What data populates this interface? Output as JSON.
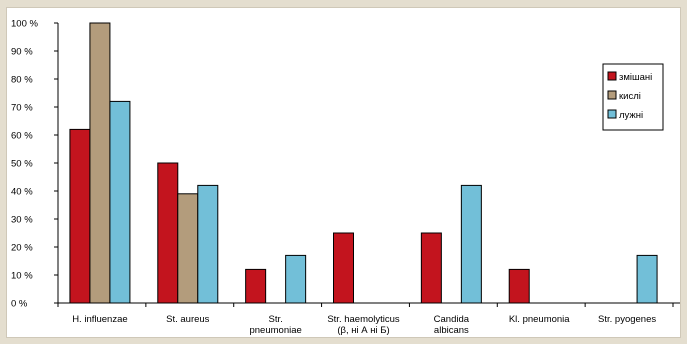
{
  "chart_data": {
    "type": "bar",
    "categories": [
      [
        "H. influenzae"
      ],
      [
        "St. aureus"
      ],
      [
        "Str.",
        "pneumoniae"
      ],
      [
        "Str. haemolyticus",
        "(β, ні А ні Б)"
      ],
      [
        "Candida",
        "albicans"
      ],
      [
        "Kl. pneumonia"
      ],
      [
        "Str. pyogenes"
      ]
    ],
    "series": [
      {
        "name": "змішані",
        "color": "#c3141e",
        "values": [
          62,
          50,
          12,
          25,
          25,
          12,
          0
        ]
      },
      {
        "name": "кислі",
        "color": "#b39c7c",
        "values": [
          100,
          39,
          0,
          0,
          0,
          0,
          0
        ]
      },
      {
        "name": "лужні",
        "color": "#72bfd8",
        "values": [
          72,
          42,
          17,
          0,
          42,
          0,
          17
        ]
      }
    ],
    "ylim": [
      0,
      100
    ],
    "yticks": [
      "0 %",
      "10 %",
      "20 %",
      "30 %",
      "40 %",
      "50 %",
      "60 %",
      "70 %",
      "80 %",
      "90 %",
      "100  %"
    ],
    "legend_position": "right"
  }
}
